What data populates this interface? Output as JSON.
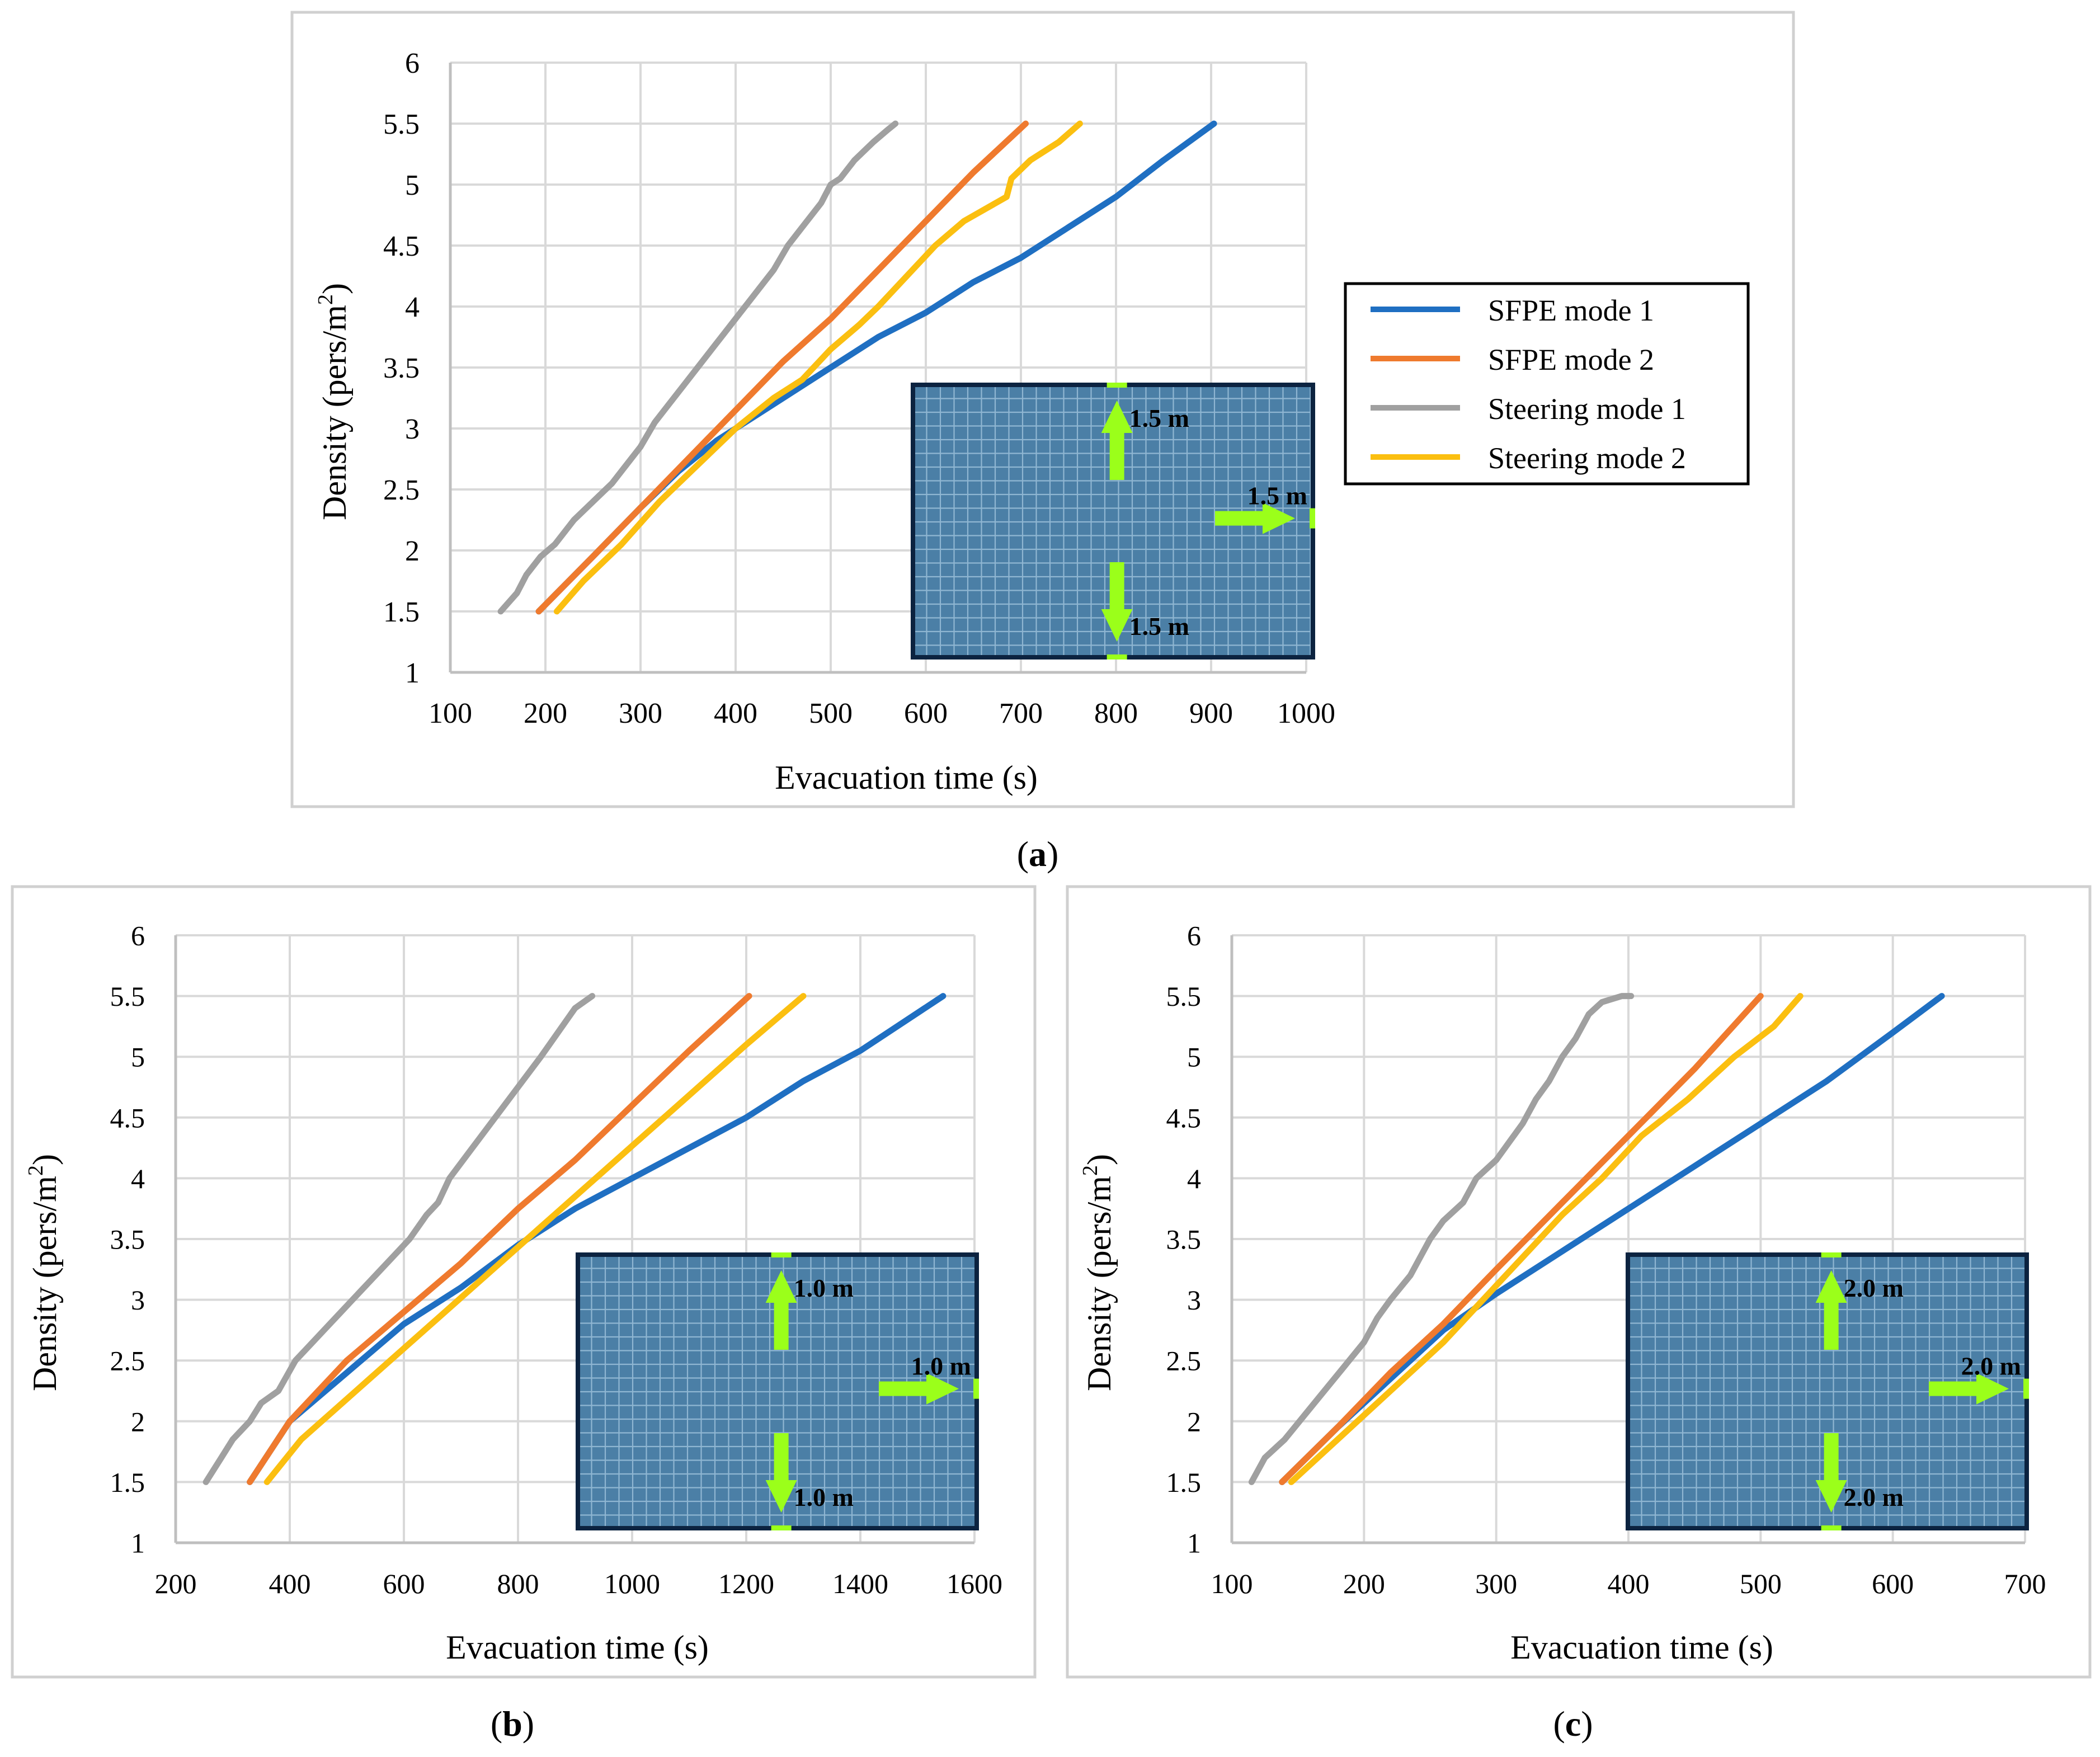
{
  "colors": {
    "sfpe1": "#1f6fc2",
    "sfpe2": "#ef7a2e",
    "steer1": "#a0a0a0",
    "steer2": "#fbbf10",
    "grid": "#d9d9d9",
    "axis": "#bfbfbf",
    "frame": "#d0d0d0",
    "inset_fill": "#4b7fa6",
    "inset_grid": "#8fb6d2",
    "inset_border": "#0c2340",
    "arrow": "#9bff1a"
  },
  "icons": [
    "exit-arrow-up-icon",
    "exit-arrow-down-icon",
    "exit-arrow-right-icon"
  ],
  "legend": {
    "entries": [
      "SFPE mode 1",
      "SFPE mode 2",
      "Steering mode 1",
      "Steering mode 2"
    ]
  },
  "chart_data": [
    {
      "type": "line",
      "panel_label": "a",
      "xlabel": "Evacuation time (s)",
      "ylabel": "Density (pers/m",
      "ylabel_sup": "2",
      "ylabel_end": ")",
      "xlim": [
        100,
        1000
      ],
      "xticks": [
        "100",
        "200",
        "300",
        "400",
        "500",
        "600",
        "700",
        "800",
        "900",
        "1000"
      ],
      "ylim": [
        1,
        6
      ],
      "yticks": [
        "1",
        "1.5",
        "2",
        "2.5",
        "3",
        "3.5",
        "4",
        "4.5",
        "5",
        "5.5",
        "6"
      ],
      "grid": true,
      "inset_labels": {
        "top": "1.5 m",
        "right": "1.5 m",
        "bottom": "1.5 m"
      },
      "series": [
        {
          "name": "SFPE mode 1",
          "x": [
            193,
            250,
            300,
            340,
            380,
            420,
            460,
            500,
            550,
            600,
            650,
            700,
            750,
            800,
            850,
            903
          ],
          "y": [
            1.5,
            1.95,
            2.35,
            2.65,
            2.9,
            3.1,
            3.3,
            3.5,
            3.75,
            3.95,
            4.2,
            4.4,
            4.65,
            4.9,
            5.2,
            5.5
          ]
        },
        {
          "name": "SFPE mode 2",
          "x": [
            193,
            250,
            300,
            350,
            400,
            450,
            500,
            550,
            600,
            650,
            705
          ],
          "y": [
            1.5,
            1.95,
            2.35,
            2.75,
            3.15,
            3.55,
            3.9,
            4.3,
            4.7,
            5.1,
            5.5
          ]
        },
        {
          "name": "Steering mode 1",
          "x": [
            153,
            170,
            180,
            195,
            210,
            230,
            250,
            270,
            285,
            300,
            315,
            330,
            345,
            360,
            375,
            390,
            400,
            415,
            430,
            440,
            455,
            470,
            480,
            490,
            500,
            510,
            525,
            545,
            560,
            568
          ],
          "y": [
            1.5,
            1.65,
            1.8,
            1.95,
            2.05,
            2.25,
            2.4,
            2.55,
            2.7,
            2.85,
            3.05,
            3.2,
            3.35,
            3.5,
            3.65,
            3.8,
            3.9,
            4.05,
            4.2,
            4.3,
            4.5,
            4.65,
            4.75,
            4.85,
            5.0,
            5.05,
            5.2,
            5.35,
            5.45,
            5.5
          ]
        },
        {
          "name": "Steering mode 2",
          "x": [
            212,
            240,
            280,
            320,
            360,
            400,
            440,
            460,
            470,
            500,
            530,
            550,
            580,
            610,
            640,
            685,
            690,
            710,
            740,
            762
          ],
          "y": [
            1.5,
            1.75,
            2.05,
            2.4,
            2.7,
            3.0,
            3.25,
            3.35,
            3.4,
            3.65,
            3.85,
            4.0,
            4.25,
            4.5,
            4.7,
            4.9,
            5.05,
            5.2,
            5.35,
            5.5
          ]
        }
      ]
    },
    {
      "type": "line",
      "panel_label": "b",
      "xlabel": "Evacuation time (s)",
      "ylabel": "Density (pers/m",
      "ylabel_sup": "2",
      "ylabel_end": ")",
      "xlim": [
        200,
        1600
      ],
      "xticks": [
        "200",
        "400",
        "600",
        "800",
        "1000",
        "1200",
        "1400",
        "1600"
      ],
      "ylim": [
        1,
        6
      ],
      "yticks": [
        "1",
        "1.5",
        "2",
        "2.5",
        "3",
        "3.5",
        "4",
        "4.5",
        "5",
        "5.5",
        "6"
      ],
      "grid": true,
      "inset_labels": {
        "top": "1.0 m",
        "right": "1.0 m",
        "bottom": "1.0 m"
      },
      "series": [
        {
          "name": "SFPE mode 1",
          "x": [
            330,
            400,
            500,
            600,
            700,
            800,
            900,
            1000,
            1100,
            1200,
            1300,
            1400,
            1545
          ],
          "y": [
            1.5,
            2.0,
            2.4,
            2.8,
            3.1,
            3.45,
            3.75,
            4.0,
            4.25,
            4.5,
            4.8,
            5.05,
            5.5
          ]
        },
        {
          "name": "SFPE mode 2",
          "x": [
            330,
            400,
            500,
            600,
            700,
            800,
            900,
            1000,
            1100,
            1205
          ],
          "y": [
            1.5,
            2.0,
            2.5,
            2.9,
            3.3,
            3.75,
            4.15,
            4.6,
            5.05,
            5.5
          ]
        },
        {
          "name": "Steering mode 1",
          "x": [
            253,
            280,
            300,
            330,
            350,
            380,
            410,
            430,
            460,
            490,
            520,
            550,
            580,
            610,
            640,
            660,
            680,
            720,
            760,
            800,
            840,
            870,
            900,
            930
          ],
          "y": [
            1.5,
            1.7,
            1.85,
            2.0,
            2.15,
            2.25,
            2.5,
            2.6,
            2.75,
            2.9,
            3.05,
            3.2,
            3.35,
            3.5,
            3.7,
            3.8,
            4.0,
            4.25,
            4.5,
            4.75,
            5.0,
            5.2,
            5.4,
            5.5
          ]
        },
        {
          "name": "Steering mode 2",
          "x": [
            360,
            420,
            480,
            540,
            600,
            660,
            720,
            780,
            840,
            900,
            960,
            1020,
            1080,
            1140,
            1200,
            1250,
            1300
          ],
          "y": [
            1.5,
            1.85,
            2.1,
            2.35,
            2.6,
            2.85,
            3.1,
            3.35,
            3.6,
            3.85,
            4.1,
            4.35,
            4.6,
            4.85,
            5.1,
            5.3,
            5.5
          ]
        }
      ]
    },
    {
      "type": "line",
      "panel_label": "c",
      "xlabel": "Evacuation time (s)",
      "ylabel": "Density (pers/m",
      "ylabel_sup": "2",
      "ylabel_end": ")",
      "xlim": [
        100,
        700
      ],
      "xticks": [
        "100",
        "200",
        "300",
        "400",
        "500",
        "600",
        "700"
      ],
      "ylim": [
        1,
        6
      ],
      "yticks": [
        "1",
        "1.5",
        "2",
        "2.5",
        "3",
        "3.5",
        "4",
        "4.5",
        "5",
        "5.5",
        "6"
      ],
      "grid": true,
      "inset_labels": {
        "top": "2.0 m",
        "right": "2.0 m",
        "bottom": "2.0 m"
      },
      "series": [
        {
          "name": "SFPE mode 1",
          "x": [
            138,
            180,
            220,
            260,
            300,
            350,
            400,
            450,
            500,
            550,
            600,
            637
          ],
          "y": [
            1.5,
            1.95,
            2.35,
            2.75,
            3.05,
            3.4,
            3.75,
            4.1,
            4.45,
            4.8,
            5.2,
            5.5
          ]
        },
        {
          "name": "SFPE mode 2",
          "x": [
            138,
            180,
            220,
            260,
            300,
            350,
            400,
            450,
            500
          ],
          "y": [
            1.5,
            1.95,
            2.4,
            2.8,
            3.25,
            3.8,
            4.35,
            4.9,
            5.5
          ]
        },
        {
          "name": "Steering mode 1",
          "x": [
            115,
            125,
            140,
            155,
            170,
            185,
            200,
            210,
            220,
            235,
            250,
            260,
            275,
            285,
            300,
            310,
            320,
            330,
            340,
            350,
            360,
            370,
            380,
            395,
            402
          ],
          "y": [
            1.5,
            1.7,
            1.85,
            2.05,
            2.25,
            2.45,
            2.65,
            2.85,
            3.0,
            3.2,
            3.5,
            3.65,
            3.8,
            4.0,
            4.15,
            4.3,
            4.45,
            4.65,
            4.8,
            5.0,
            5.15,
            5.35,
            5.45,
            5.5,
            5.5
          ]
        },
        {
          "name": "Steering mode 2",
          "x": [
            145,
            180,
            220,
            260,
            290,
            320,
            350,
            380,
            410,
            445,
            480,
            510,
            530
          ],
          "y": [
            1.5,
            1.85,
            2.25,
            2.65,
            3.0,
            3.35,
            3.7,
            4.0,
            4.35,
            4.65,
            5.0,
            5.25,
            5.5
          ]
        }
      ]
    }
  ]
}
